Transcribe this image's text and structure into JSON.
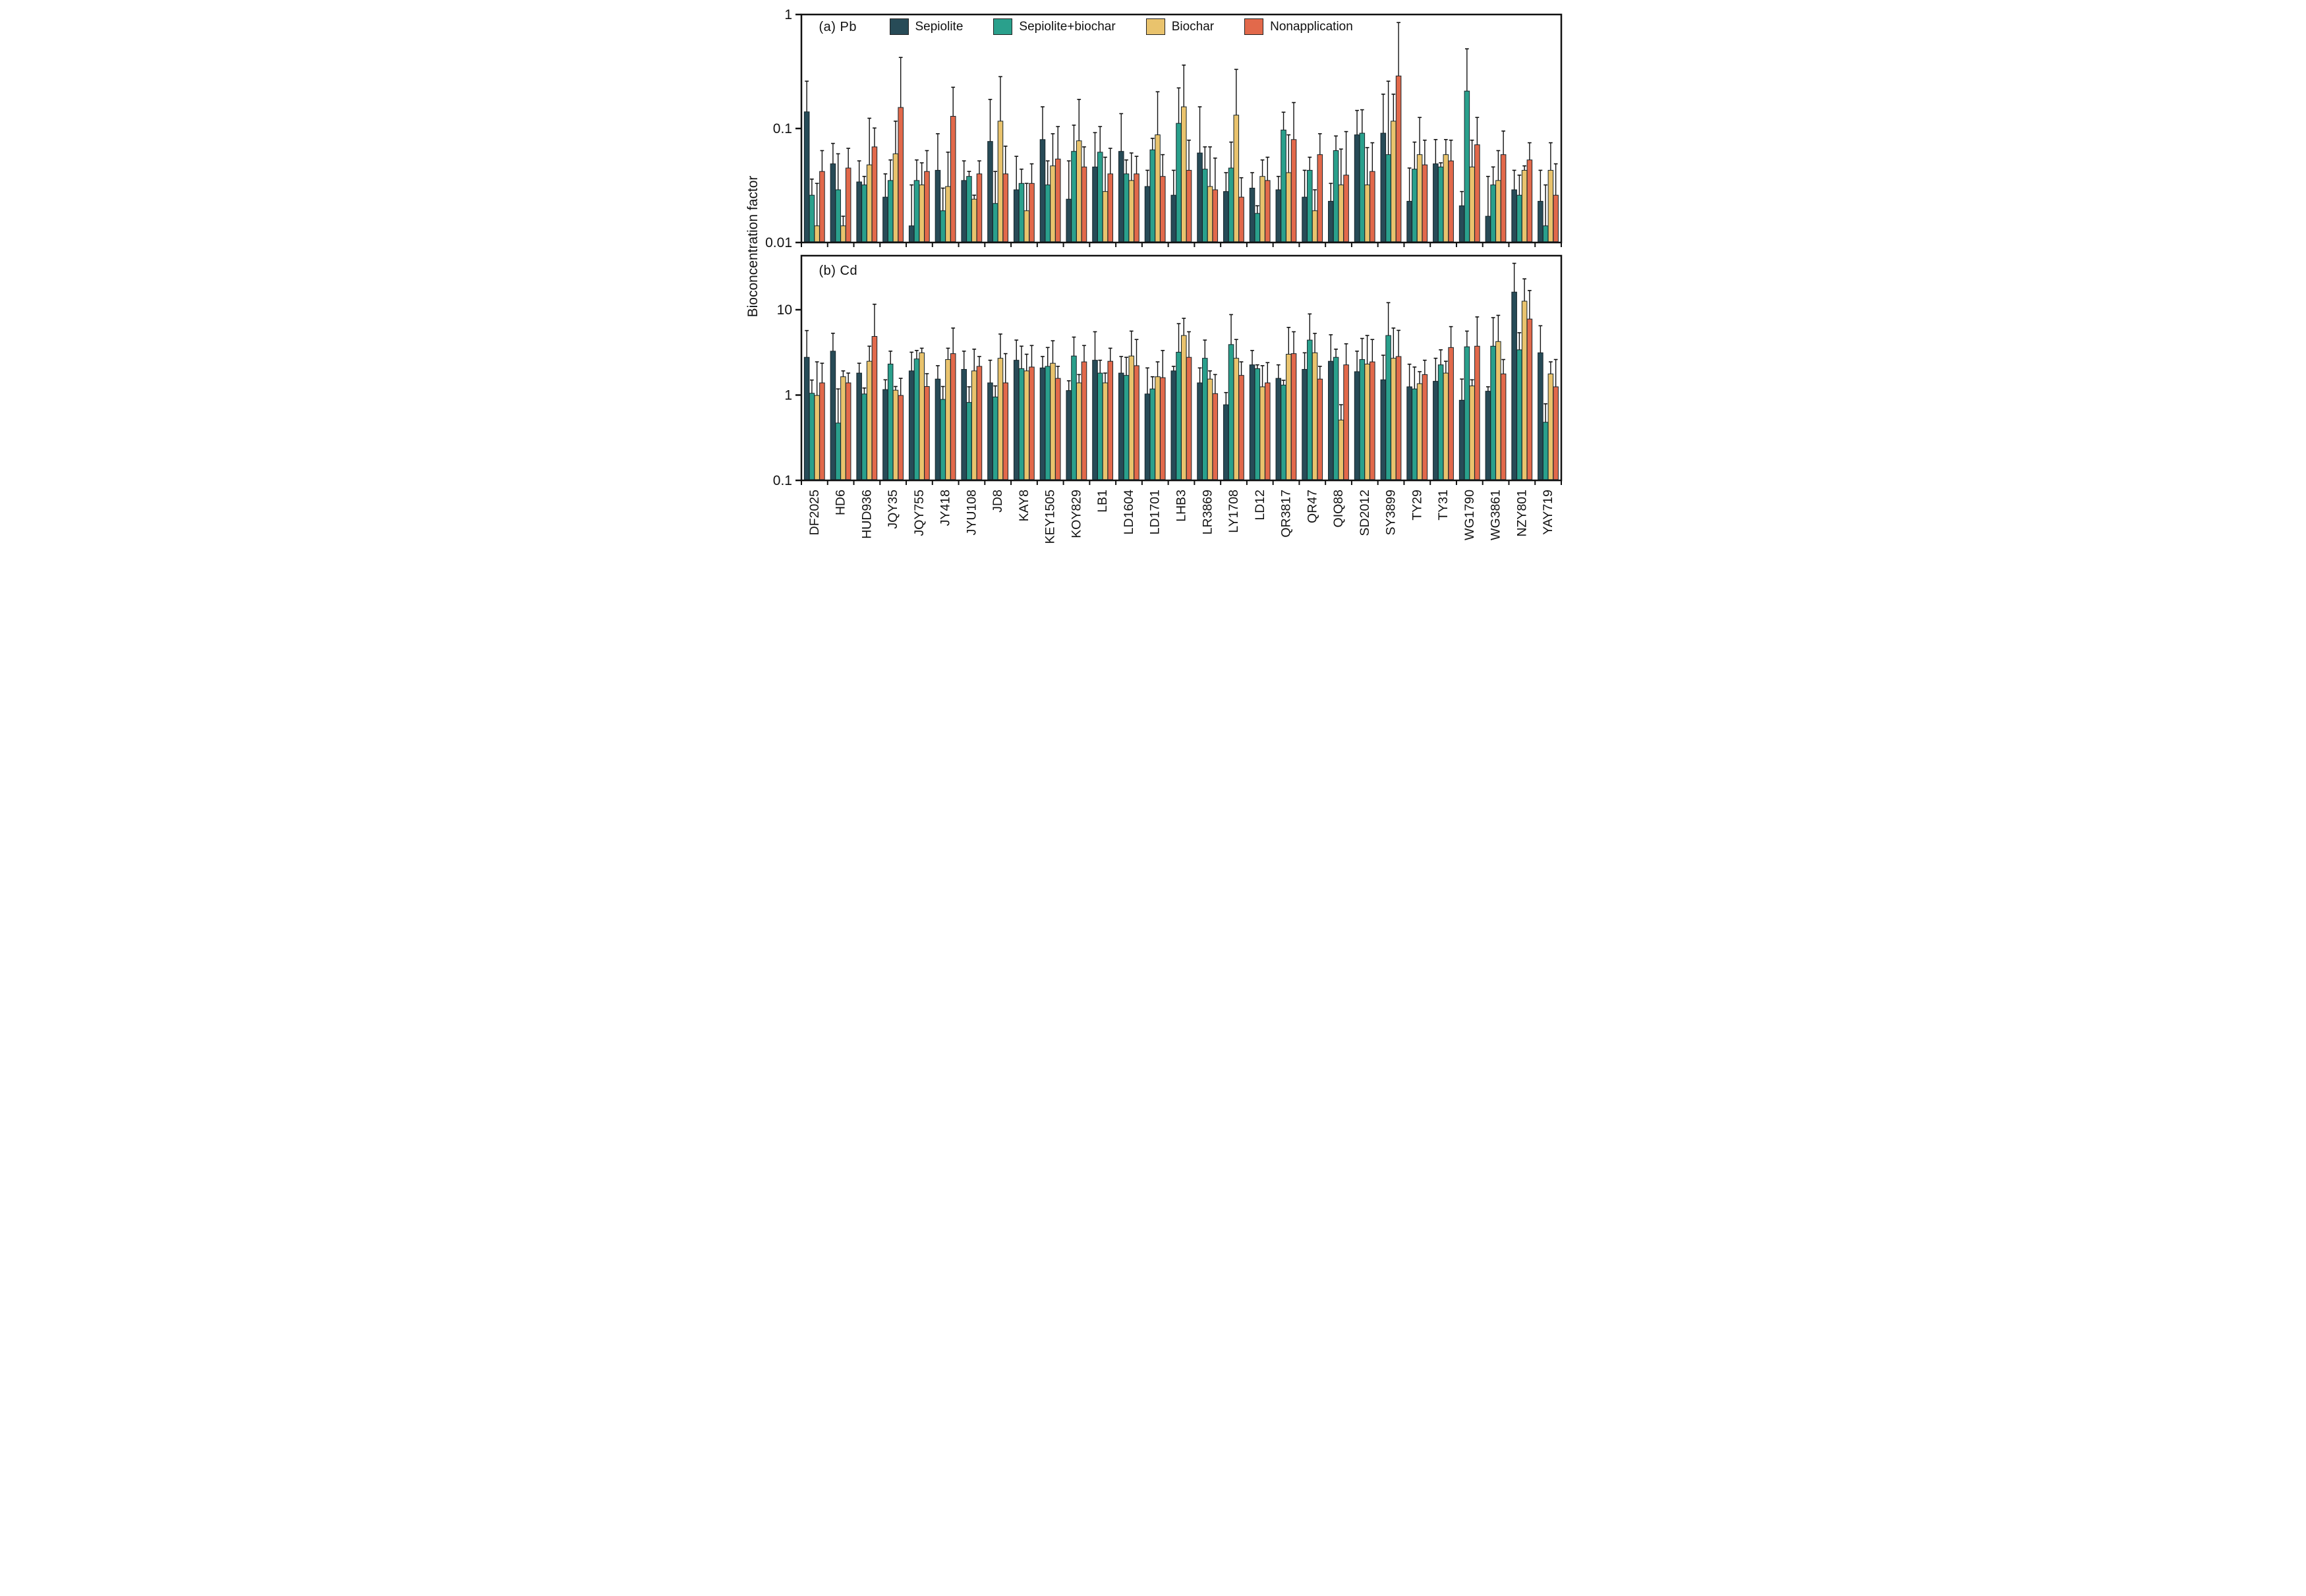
{
  "figure": {
    "ylabel": "Bioconcentration factor",
    "panel_a_label": "(a) Pb",
    "panel_b_label": "(b) Cd"
  },
  "colors": {
    "sepiolite": "#274b57",
    "sepiolite_biochar": "#2aa08c",
    "biochar": "#e9c36d",
    "nonapplication": "#e2694b",
    "axis": "#111111"
  },
  "legend": {
    "items": [
      {
        "label": "Sepiolite",
        "color": "#274b57"
      },
      {
        "label": "Sepiolite+biochar",
        "color": "#2aa08c"
      },
      {
        "label": "Biochar",
        "color": "#e9c36d"
      },
      {
        "label": "Nonapplication",
        "color": "#e2694b"
      }
    ]
  },
  "chart_data": [
    {
      "type": "bar",
      "panel_label": "(a) Pb",
      "yscale": "log",
      "ylim": [
        0.01,
        1
      ],
      "yticks": [
        {
          "v": 1,
          "label": "1"
        },
        {
          "v": 0.1,
          "label": "0.1"
        },
        {
          "v": 0.01,
          "label": "0.01"
        }
      ],
      "grid": false,
      "legend_position": "top-inside",
      "show_x_labels": false,
      "categories": [
        "DF2025",
        "HD6",
        "HUD936",
        "JQY35",
        "JQY755",
        "JY418",
        "JYU108",
        "JD8",
        "KAY8",
        "KEY1505",
        "KOY829",
        "LB1",
        "LD1604",
        "LD1701",
        "LHB3",
        "LR3869",
        "LY1708",
        "LD12",
        "QR3817",
        "QR47",
        "QIQ88",
        "SD2012",
        "SY3899",
        "TY29",
        "TY31",
        "WG1790",
        "WG3861",
        "NZY801",
        "YAY719"
      ],
      "series": [
        {
          "name": "Sepiolite",
          "color": "#274b57",
          "values": [
            0.14,
            0.049,
            0.034,
            0.025,
            0.014,
            0.043,
            0.035,
            0.077,
            0.029,
            0.08,
            0.024,
            0.046,
            0.063,
            0.031,
            0.026,
            0.061,
            0.028,
            0.03,
            0.029,
            0.025,
            0.023,
            0.088,
            0.091,
            0.023,
            0.049,
            0.021,
            0.017,
            0.029,
            0.023
          ],
          "err_hi": [
            0.26,
            0.074,
            0.052,
            0.04,
            0.032,
            0.09,
            0.052,
            0.18,
            0.057,
            0.155,
            0.052,
            0.092,
            0.135,
            0.043,
            0.043,
            0.155,
            0.041,
            0.041,
            0.038,
            0.043,
            0.033,
            0.144,
            0.2,
            0.045,
            0.08,
            0.028,
            0.038,
            0.043,
            0.043
          ]
        },
        {
          "name": "Sepiolite+biochar",
          "color": "#2aa08c",
          "values": [
            0.026,
            0.029,
            0.032,
            0.035,
            0.035,
            0.019,
            0.038,
            0.022,
            0.033,
            0.032,
            0.063,
            0.062,
            0.04,
            0.065,
            0.111,
            0.044,
            0.045,
            0.018,
            0.097,
            0.043,
            0.064,
            0.091,
            0.059,
            0.044,
            0.046,
            0.213,
            0.032,
            0.026,
            0.014
          ],
          "err_hi": [
            0.036,
            0.06,
            0.038,
            0.053,
            0.053,
            0.03,
            0.042,
            0.042,
            0.044,
            0.052,
            0.107,
            0.104,
            0.053,
            0.082,
            0.227,
            0.069,
            0.076,
            0.021,
            0.139,
            0.056,
            0.086,
            0.146,
            0.26,
            0.076,
            0.05,
            0.5,
            0.046,
            0.039,
            0.032
          ]
        },
        {
          "name": "Biochar",
          "color": "#e9c36d",
          "values": [
            0.014,
            0.014,
            0.048,
            0.06,
            0.032,
            0.031,
            0.024,
            0.116,
            0.019,
            0.047,
            0.078,
            0.028,
            0.035,
            0.088,
            0.155,
            0.031,
            0.131,
            0.038,
            0.041,
            0.019,
            0.032,
            0.032,
            0.116,
            0.059,
            0.059,
            0.046,
            0.035,
            0.043,
            0.043
          ],
          "err_hi": [
            0.033,
            0.017,
            0.123,
            0.116,
            0.05,
            0.062,
            0.026,
            0.285,
            0.033,
            0.09,
            0.18,
            0.056,
            0.061,
            0.21,
            0.36,
            0.069,
            0.33,
            0.053,
            0.088,
            0.029,
            0.066,
            0.068,
            0.2,
            0.125,
            0.08,
            0.079,
            0.064,
            0.047,
            0.075
          ]
        },
        {
          "name": "Nonapplication",
          "color": "#e2694b",
          "values": [
            0.042,
            0.045,
            0.069,
            0.153,
            0.042,
            0.128,
            0.04,
            0.04,
            0.033,
            0.054,
            0.046,
            0.04,
            0.04,
            0.038,
            0.043,
            0.029,
            0.025,
            0.035,
            0.08,
            0.059,
            0.039,
            0.042,
            0.289,
            0.048,
            0.052,
            0.072,
            0.059,
            0.053,
            0.026
          ],
          "err_hi": [
            0.064,
            0.067,
            0.101,
            0.42,
            0.064,
            0.23,
            0.052,
            0.07,
            0.049,
            0.104,
            0.069,
            0.067,
            0.057,
            0.059,
            0.079,
            0.055,
            0.037,
            0.056,
            0.169,
            0.09,
            0.094,
            0.075,
            0.85,
            0.079,
            0.079,
            0.125,
            0.095,
            0.075,
            0.049
          ]
        }
      ]
    },
    {
      "type": "bar",
      "panel_label": "(b) Cd",
      "yscale": "log",
      "ylim": [
        0.1,
        43
      ],
      "yticks": [
        {
          "v": 10,
          "label": "10"
        },
        {
          "v": 1,
          "label": "1"
        },
        {
          "v": 0.1,
          "label": "0.1"
        }
      ],
      "grid": false,
      "legend_position": "none",
      "show_x_labels": true,
      "categories": [
        "DF2025",
        "HD6",
        "HUD936",
        "JQY35",
        "JQY755",
        "JY418",
        "JYU108",
        "JD8",
        "KAY8",
        "KEY1505",
        "KOY829",
        "LB1",
        "LD1604",
        "LD1701",
        "LHB3",
        "LR3869",
        "LY1708",
        "LD12",
        "QR3817",
        "QR47",
        "QIQ88",
        "SD2012",
        "SY3899",
        "TY29",
        "TY31",
        "WG1790",
        "WG3861",
        "NZY801",
        "YAY719"
      ],
      "series": [
        {
          "name": "Sepiolite",
          "color": "#274b57",
          "values": [
            2.77,
            3.27,
            1.81,
            1.16,
            1.92,
            1.54,
            2.0,
            1.39,
            2.56,
            2.08,
            1.13,
            2.56,
            1.81,
            1.03,
            1.92,
            1.39,
            0.77,
            2.26,
            1.57,
            2.0,
            2.49,
            1.88,
            1.51,
            1.25,
            1.45,
            0.87,
            1.11,
            16.1,
            3.13
          ],
          "err_hi": [
            5.7,
            5.3,
            2.36,
            1.51,
            3.18,
            2.21,
            3.27,
            2.56,
            4.41,
            2.83,
            1.47,
            5.52,
            2.83,
            2.08,
            2.17,
            2.08,
            1.07,
            3.33,
            2.26,
            3.13,
            5.09,
            3.27,
            2.93,
            2.3,
            2.7,
            1.54,
            1.25,
            35,
            6.49
          ]
        },
        {
          "name": "Sepiolite+biochar",
          "color": "#2aa08c",
          "values": [
            1.05,
            0.47,
            1.03,
            2.31,
            2.65,
            0.89,
            0.82,
            0.95,
            2.04,
            2.17,
            2.87,
            1.81,
            1.7,
            1.18,
            3.18,
            2.7,
            3.91,
            2.04,
            1.31,
            4.41,
            2.77,
            2.61,
            4.99,
            1.18,
            2.26,
            3.68,
            3.74,
            3.39,
            0.48
          ],
          "err_hi": [
            1.5,
            1.18,
            1.21,
            3.27,
            3.33,
            1.26,
            1.25,
            1.28,
            3.74,
            3.61,
            4.78,
            2.56,
            2.77,
            1.64,
            6.87,
            4.41,
            8.77,
            2.26,
            1.49,
            8.93,
            3.45,
            4.61,
            12.1,
            2.13,
            3.39,
            5.62,
            8.08,
            5.38,
            0.79
          ]
        },
        {
          "name": "Biochar",
          "color": "#e9c36d",
          "values": [
            0.99,
            1.64,
            2.49,
            1.14,
            3.13,
            2.61,
            1.92,
            2.7,
            1.92,
            2.36,
            1.39,
            1.39,
            2.87,
            1.64,
            4.99,
            1.54,
            2.7,
            1.25,
            3.01,
            3.13,
            0.51,
            2.31,
            2.7,
            1.36,
            1.81,
            1.28,
            4.24,
            12.6,
            1.77
          ],
          "err_hi": [
            2.45,
            1.92,
            3.74,
            1.26,
            3.54,
            3.54,
            3.45,
            5.19,
            3.01,
            4.33,
            1.74,
            1.81,
            5.62,
            2.45,
            7.93,
            1.92,
            4.48,
            2.21,
            6.21,
            5.28,
            0.77,
            4.99,
            6.1,
            1.88,
            2.49,
            1.51,
            8.6,
            23,
            2.45
          ]
        },
        {
          "name": "Nonapplication",
          "color": "#e2694b",
          "values": [
            1.39,
            1.39,
            4.87,
            0.99,
            1.26,
            3.06,
            2.17,
            1.39,
            2.13,
            1.57,
            2.45,
            2.49,
            2.21,
            1.6,
            2.77,
            1.04,
            1.7,
            1.39,
            3.06,
            1.54,
            2.26,
            2.45,
            2.83,
            1.74,
            3.61,
            3.74,
            1.77,
            7.78,
            1.25
          ],
          "err_hi": [
            2.36,
            1.81,
            11.6,
            1.57,
            1.78,
            6.1,
            2.83,
            3.06,
            3.81,
            2.17,
            3.81,
            3.54,
            4.48,
            3.33,
            5.52,
            1.74,
            2.45,
            2.4,
            5.52,
            2.17,
            3.99,
            4.48,
            5.73,
            2.56,
            6.34,
            8.24,
            2.61,
            16.8,
            2.61
          ]
        }
      ]
    }
  ]
}
